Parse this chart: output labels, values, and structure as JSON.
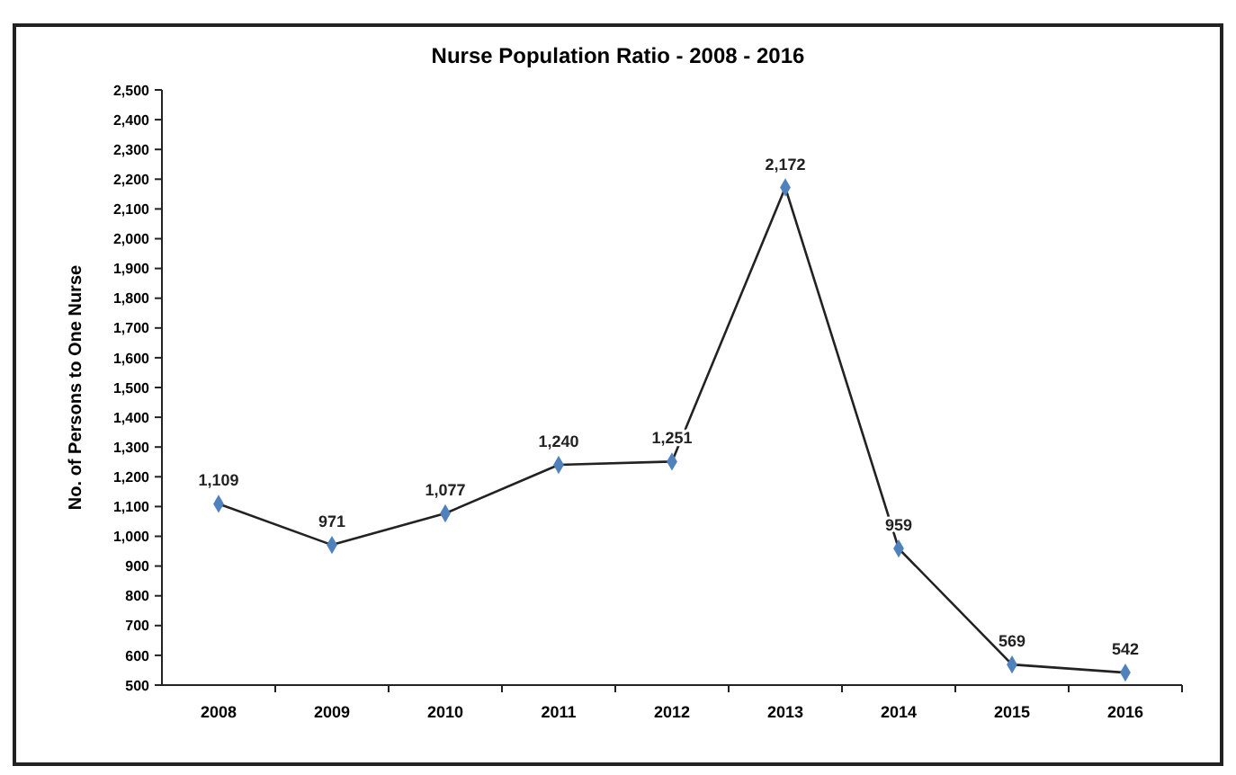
{
  "chart_data": {
    "type": "line",
    "title": "Nurse Population Ratio - 2008 - 2016",
    "ylabel": "No. of Persons  to One Nurse",
    "categories": [
      "2008",
      "2009",
      "2010",
      "2011",
      "2012",
      "2013",
      "2014",
      "2015",
      "2016"
    ],
    "series": [
      {
        "color": "#4f81bd",
        "values": [
          1109,
          971,
          1077,
          1240,
          1251,
          2172,
          959,
          569,
          542
        ],
        "value_labels": [
          "1,109",
          "971",
          "1,077",
          "1,240",
          "1,251",
          "2,172",
          "959",
          "569",
          "542"
        ]
      }
    ],
    "ylim": [
      500,
      2500
    ],
    "yticks": [
      {
        "value": 500,
        "label": "500"
      },
      {
        "value": 600,
        "label": "600"
      },
      {
        "value": 700,
        "label": "700"
      },
      {
        "value": 800,
        "label": "800"
      },
      {
        "value": 900,
        "label": "900"
      },
      {
        "value": 1000,
        "label": "1,000"
      },
      {
        "value": 1100,
        "label": "1,100"
      },
      {
        "value": 1200,
        "label": "1,200"
      },
      {
        "value": 1300,
        "label": "1,300"
      },
      {
        "value": 1400,
        "label": "1,400"
      },
      {
        "value": 1500,
        "label": "1,500"
      },
      {
        "value": 1600,
        "label": "1,600"
      },
      {
        "value": 1700,
        "label": "1,700"
      },
      {
        "value": 1800,
        "label": "1,800"
      },
      {
        "value": 1900,
        "label": "1,900"
      },
      {
        "value": 2000,
        "label": "2,000"
      },
      {
        "value": 2100,
        "label": "2,100"
      },
      {
        "value": 2200,
        "label": "2,200"
      },
      {
        "value": 2300,
        "label": "2,300"
      },
      {
        "value": 2400,
        "label": "2,400"
      },
      {
        "value": 2500,
        "label": "2,500"
      }
    ],
    "grid": false,
    "marker": "diamond",
    "line_style": "solid"
  }
}
